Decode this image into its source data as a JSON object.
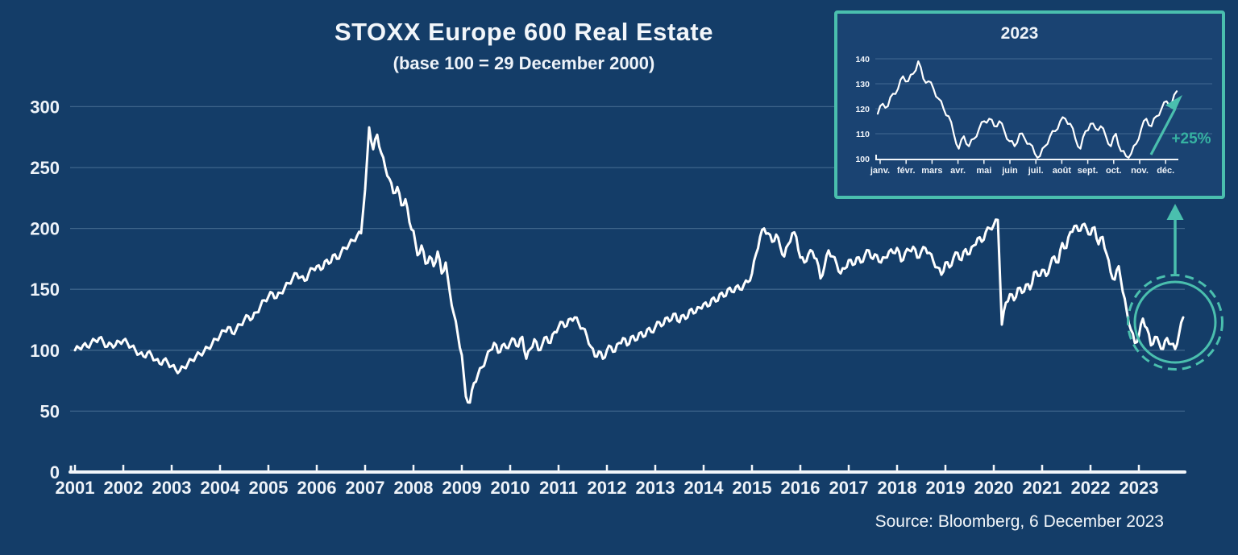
{
  "source": "Source: Bloomberg, 6 December 2023",
  "colors": {
    "background": "#143d68",
    "inset_background": "#1a4372",
    "line": "#ffffff",
    "accent": "#4abfae",
    "accent_text": "#36b2a2",
    "grid": "rgba(173,203,230,0.28)",
    "text": "#eef3f9",
    "axis": "#f2f6fa"
  },
  "chart_data": [
    {
      "type": "line",
      "title": "STOXX Europe 600 Real Estate",
      "subtitle": "(base 100 = 29 December 2000)",
      "series_name": "STOXX Europe 600 Real Estate index",
      "x_start": "2001-01",
      "x_end": "2023-12",
      "categories": [
        "2001",
        "2002",
        "2003",
        "2004",
        "2005",
        "2006",
        "2007",
        "2008",
        "2009",
        "2010",
        "2011",
        "2012",
        "2013",
        "2014",
        "2015",
        "2016",
        "2017",
        "2018",
        "2019",
        "2020",
        "2021",
        "2022",
        "2023"
      ],
      "y_ticks": [
        0,
        50,
        100,
        150,
        200,
        250,
        300
      ],
      "ylim": [
        0,
        310
      ],
      "grid": "horizontal",
      "legend": "none",
      "values_monthly": [
        100,
        102,
        104,
        103,
        106,
        108,
        110,
        107,
        103,
        105,
        104,
        107,
        108,
        106,
        103,
        100,
        97,
        95,
        98,
        96,
        92,
        89,
        92,
        90,
        87,
        84,
        83,
        86,
        89,
        92,
        95,
        97,
        99,
        102,
        105,
        109,
        112,
        116,
        119,
        114,
        117,
        121,
        125,
        128,
        126,
        131,
        136,
        141,
        144,
        147,
        143,
        147,
        151,
        155,
        159,
        163,
        160,
        157,
        163,
        167,
        169,
        166,
        173,
        171,
        178,
        175,
        180,
        184,
        187,
        190,
        194,
        196,
        232,
        283,
        265,
        277,
        262,
        250,
        241,
        229,
        234,
        219,
        224,
        205,
        198,
        178,
        186,
        171,
        177,
        169,
        181,
        163,
        172,
        148,
        130,
        113,
        96,
        62,
        57,
        73,
        80,
        86,
        93,
        100,
        106,
        98,
        104,
        102,
        106,
        109,
        103,
        111,
        93,
        101,
        109,
        100,
        105,
        111,
        106,
        115,
        119,
        123,
        120,
        126,
        127,
        122,
        118,
        112,
        103,
        95,
        99,
        93,
        100,
        103,
        99,
        106,
        110,
        104,
        111,
        108,
        114,
        111,
        117,
        115,
        119,
        123,
        121,
        127,
        125,
        130,
        123,
        129,
        127,
        134,
        131,
        135,
        138,
        136,
        142,
        140,
        146,
        144,
        150,
        148,
        152,
        150,
        154,
        156,
        163,
        179,
        193,
        200,
        196,
        189,
        195,
        185,
        177,
        187,
        196,
        193,
        176,
        172,
        179,
        181,
        175,
        159,
        169,
        182,
        177,
        171,
        163,
        167,
        174,
        170,
        176,
        172,
        178,
        182,
        175,
        178,
        172,
        176,
        181,
        180,
        184,
        173,
        180,
        182,
        185,
        176,
        181,
        184,
        180,
        173,
        168,
        162,
        172,
        168,
        176,
        180,
        174,
        183,
        179,
        186,
        192,
        189,
        197,
        200,
        203,
        207,
        121,
        139,
        146,
        141,
        151,
        147,
        154,
        150,
        164,
        161,
        166,
        161,
        170,
        177,
        172,
        188,
        184,
        197,
        202,
        198,
        203,
        200,
        195,
        201,
        187,
        193,
        179,
        164,
        158,
        169,
        148,
        132,
        117,
        106,
        112,
        126,
        118,
        104,
        111,
        106,
        101,
        110,
        105,
        101,
        114,
        127
      ]
    },
    {
      "type": "line",
      "title": "2023",
      "annotation": "+25%",
      "x_labels": [
        "janv.",
        "févr.",
        "mars",
        "avr.",
        "mai",
        "juin",
        "juil.",
        "août",
        "sept.",
        "oct.",
        "nov.",
        "déc."
      ],
      "y_ticks": [
        100,
        110,
        120,
        130,
        140
      ],
      "ylim": [
        100,
        142
      ],
      "grid": "horizontal",
      "legend": "none",
      "values_weekly": [
        118,
        122,
        121,
        126,
        128,
        133,
        131,
        134,
        139,
        132,
        131,
        128,
        124,
        120,
        117,
        110,
        104,
        109,
        105,
        108,
        112,
        115,
        116,
        113,
        115,
        111,
        107,
        105,
        110,
        108,
        106,
        102,
        101,
        105,
        109,
        111,
        115,
        116,
        114,
        108,
        104,
        111,
        114,
        112,
        113,
        109,
        105,
        110,
        103,
        101,
        102,
        106,
        112,
        116,
        113,
        117,
        120,
        123,
        122,
        127
      ]
    }
  ]
}
